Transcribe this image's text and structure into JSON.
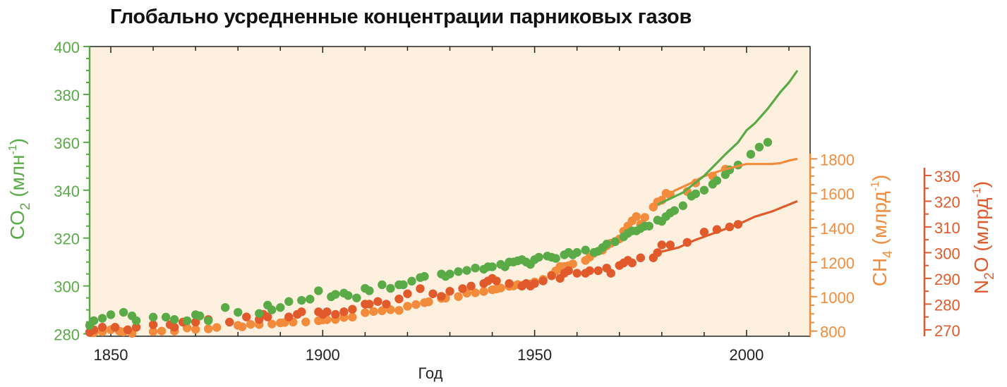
{
  "title": "Глобально усредненные концентрации парниковых газов",
  "colors": {
    "co2": "#5aaa48",
    "ch4": "#f28c3c",
    "n2o": "#e05a2c",
    "plot_bg": "#fdf0df"
  },
  "chart_data": {
    "type": "scatter",
    "title": "Глобально усредненные концентрации парниковых газов",
    "xlabel": "Год",
    "xlim": [
      1845,
      2015
    ],
    "x_ticks": [
      1850,
      1900,
      1950,
      2000
    ],
    "y_axes": [
      {
        "series": "CO2",
        "label_main": "CO",
        "label_sub": "2",
        "label_unit": " (млн",
        "label_sup": "-1",
        "label_close": ")",
        "lim": [
          279,
          400
        ],
        "ticks": [
          280,
          300,
          320,
          340,
          360,
          380,
          400
        ],
        "side": "left",
        "color": "#5aaa48"
      },
      {
        "series": "CH4",
        "label_main": "CH",
        "label_sub": "4",
        "label_unit": " (млрд",
        "label_sup": "-1",
        "label_close": ")",
        "lim": [
          770,
          1830
        ],
        "ticks": [
          800,
          1000,
          1200,
          1400,
          1600,
          1800
        ],
        "side": "right",
        "color": "#f28c3c"
      },
      {
        "series": "N2O",
        "label_main": "N",
        "label_sub": "2",
        "label_unit": "O (млрд",
        "label_sup": "-1",
        "label_close": ")",
        "lim": [
          267.5,
          333
        ],
        "ticks": [
          270,
          280,
          290,
          300,
          310,
          320,
          330
        ],
        "side": "right",
        "color": "#e05a2c"
      }
    ],
    "series": [
      {
        "id": "CO2",
        "color": "#5aaa48",
        "points": [
          [
            1845,
            283.5
          ],
          [
            1846,
            285.5
          ],
          [
            1848,
            286.5
          ],
          [
            1850,
            288
          ],
          [
            1853,
            289
          ],
          [
            1855,
            287.5
          ],
          [
            1856,
            285.5
          ],
          [
            1860,
            287
          ],
          [
            1863,
            287
          ],
          [
            1865,
            286
          ],
          [
            1868,
            285.5
          ],
          [
            1870,
            288
          ],
          [
            1871,
            287.5
          ],
          [
            1873,
            285.5
          ],
          [
            1877,
            291
          ],
          [
            1880,
            289
          ],
          [
            1885,
            288.5
          ],
          [
            1887,
            292
          ],
          [
            1888,
            290
          ],
          [
            1890,
            291
          ],
          [
            1892,
            293.5
          ],
          [
            1895,
            294
          ],
          [
            1897,
            294.5
          ],
          [
            1899,
            298
          ],
          [
            1902,
            295.5
          ],
          [
            1903,
            296.5
          ],
          [
            1905,
            297
          ],
          [
            1906,
            296
          ],
          [
            1908,
            295
          ],
          [
            1910,
            299
          ],
          [
            1911,
            298
          ],
          [
            1914,
            300.5
          ],
          [
            1916,
            299
          ],
          [
            1918,
            300.5
          ],
          [
            1919,
            300.5
          ],
          [
            1921,
            302
          ],
          [
            1923,
            303.5
          ],
          [
            1924,
            304
          ],
          [
            1928,
            305
          ],
          [
            1929,
            304
          ],
          [
            1930,
            305
          ],
          [
            1932,
            306
          ],
          [
            1934,
            306.5
          ],
          [
            1936,
            307.5
          ],
          [
            1938,
            307
          ],
          [
            1939,
            308
          ],
          [
            1940,
            308
          ],
          [
            1942,
            309
          ],
          [
            1943,
            308
          ],
          [
            1944,
            310
          ],
          [
            1945,
            310
          ],
          [
            1946,
            310.5
          ],
          [
            1947,
            311
          ],
          [
            1948,
            310
          ],
          [
            1949,
            309
          ],
          [
            1950,
            311
          ],
          [
            1951,
            312
          ],
          [
            1953,
            312.5
          ],
          [
            1954,
            312
          ],
          [
            1955,
            311.5
          ],
          [
            1957,
            313
          ],
          [
            1958,
            314
          ],
          [
            1959,
            313
          ],
          [
            1960,
            314
          ],
          [
            1962,
            315
          ],
          [
            1964,
            314
          ],
          [
            1965,
            314.5
          ],
          [
            1966,
            316
          ],
          [
            1967,
            317.5
          ],
          [
            1969,
            318.5
          ],
          [
            1971,
            320.5
          ],
          [
            1972,
            322
          ],
          [
            1973,
            323
          ],
          [
            1974,
            323
          ],
          [
            1975,
            324
          ],
          [
            1976,
            325
          ],
          [
            1977,
            325
          ],
          [
            1979,
            327.5
          ],
          [
            1980,
            327
          ],
          [
            1981,
            329
          ],
          [
            1982,
            330.5
          ],
          [
            1983,
            331.5
          ],
          [
            1985,
            333.5
          ],
          [
            1987,
            337.5
          ],
          [
            1988,
            338.5
          ],
          [
            1990,
            340
          ],
          [
            1992,
            342.5
          ],
          [
            1993,
            344
          ],
          [
            1995,
            346.5
          ],
          [
            1996,
            348.5
          ],
          [
            1998,
            350.5
          ],
          [
            2001,
            355
          ],
          [
            2003,
            358
          ],
          [
            2005,
            360
          ]
        ],
        "line": [
          [
            1979,
            334
          ],
          [
            1985,
            339
          ],
          [
            1990,
            346
          ],
          [
            1995,
            355
          ],
          [
            1998,
            360
          ],
          [
            2000,
            365
          ],
          [
            2002,
            368
          ],
          [
            2005,
            374
          ],
          [
            2008,
            381
          ],
          [
            2010,
            385
          ],
          [
            2012,
            390
          ]
        ]
      },
      {
        "id": "CH4",
        "color": "#f28c3c",
        "points": [
          [
            1845,
            793
          ],
          [
            1846,
            790
          ],
          [
            1848,
            796
          ],
          [
            1850,
            808
          ],
          [
            1852,
            800
          ],
          [
            1853,
            795
          ],
          [
            1855,
            787
          ],
          [
            1860,
            797
          ],
          [
            1862,
            800
          ],
          [
            1865,
            800
          ],
          [
            1868,
            818
          ],
          [
            1870,
            810
          ],
          [
            1873,
            813
          ],
          [
            1875,
            821
          ],
          [
            1880,
            833
          ],
          [
            1881,
            825
          ],
          [
            1883,
            839
          ],
          [
            1885,
            838
          ],
          [
            1888,
            841
          ],
          [
            1890,
            848
          ],
          [
            1891,
            850
          ],
          [
            1893,
            852
          ],
          [
            1896,
            853
          ],
          [
            1899,
            860
          ],
          [
            1900,
            865
          ],
          [
            1901,
            866
          ],
          [
            1903,
            867
          ],
          [
            1905,
            879
          ],
          [
            1907,
            881
          ],
          [
            1910,
            907
          ],
          [
            1912,
            914
          ],
          [
            1914,
            918
          ],
          [
            1916,
            924
          ],
          [
            1918,
            920
          ],
          [
            1920,
            944
          ],
          [
            1922,
            954
          ],
          [
            1924,
            965
          ],
          [
            1925,
            970
          ],
          [
            1928,
            990
          ],
          [
            1929,
            991
          ],
          [
            1932,
            1000
          ],
          [
            1934,
            1020
          ],
          [
            1936,
            1022
          ],
          [
            1938,
            1030
          ],
          [
            1940,
            1040
          ],
          [
            1941,
            1044
          ],
          [
            1942,
            1050
          ],
          [
            1944,
            1060
          ],
          [
            1945,
            1062
          ],
          [
            1946,
            1070
          ],
          [
            1947,
            1066
          ],
          [
            1949,
            1073
          ],
          [
            1950,
            1085
          ],
          [
            1952,
            1100
          ],
          [
            1954,
            1126
          ],
          [
            1955,
            1150
          ],
          [
            1956,
            1175
          ],
          [
            1957,
            1175
          ],
          [
            1958,
            1180
          ],
          [
            1959,
            1190
          ],
          [
            1962,
            1210
          ],
          [
            1963,
            1230
          ],
          [
            1964,
            1252
          ],
          [
            1966,
            1270
          ],
          [
            1967,
            1295
          ],
          [
            1968,
            1310
          ],
          [
            1969,
            1320
          ],
          [
            1970,
            1335
          ],
          [
            1971,
            1380
          ],
          [
            1972,
            1410
          ],
          [
            1973,
            1440
          ],
          [
            1974,
            1465
          ],
          [
            1975,
            1420
          ],
          [
            1976,
            1460
          ],
          [
            1978,
            1520
          ],
          [
            1979,
            1550
          ],
          [
            1980,
            1560
          ],
          [
            1981,
            1600
          ],
          [
            1982,
            1590
          ],
          [
            1986,
            1610
          ],
          [
            1988,
            1660
          ],
          [
            1992,
            1700
          ],
          [
            1995,
            1740
          ]
        ],
        "line": [
          [
            1979,
            1550
          ],
          [
            1983,
            1615
          ],
          [
            1987,
            1660
          ],
          [
            1990,
            1700
          ],
          [
            1995,
            1740
          ],
          [
            2000,
            1770
          ],
          [
            2003,
            1770
          ],
          [
            2006,
            1770
          ],
          [
            2008,
            1775
          ],
          [
            2010,
            1790
          ],
          [
            2012,
            1800
          ]
        ]
      },
      {
        "id": "N2O",
        "color": "#e05a2c",
        "points": [
          [
            1845,
            269
          ],
          [
            1846,
            270
          ],
          [
            1848,
            271
          ],
          [
            1851,
            271
          ],
          [
            1854,
            270
          ],
          [
            1856,
            271
          ],
          [
            1860,
            272
          ],
          [
            1864,
            272
          ],
          [
            1865,
            271
          ],
          [
            1867,
            273
          ],
          [
            1870,
            273
          ],
          [
            1873,
            274
          ],
          [
            1878,
            273
          ],
          [
            1882,
            275
          ],
          [
            1885,
            274
          ],
          [
            1886,
            276
          ],
          [
            1887,
            275
          ],
          [
            1892,
            275
          ],
          [
            1894,
            276
          ],
          [
            1895,
            277
          ],
          [
            1899,
            277
          ],
          [
            1900,
            276
          ],
          [
            1901,
            277
          ],
          [
            1903,
            276
          ],
          [
            1905,
            277
          ],
          [
            1907,
            278
          ],
          [
            1910,
            280
          ],
          [
            1911,
            280
          ],
          [
            1913,
            281
          ],
          [
            1915,
            280
          ],
          [
            1918,
            282
          ],
          [
            1920,
            284
          ],
          [
            1923,
            286
          ],
          [
            1926,
            284
          ],
          [
            1928,
            283
          ],
          [
            1930,
            285
          ],
          [
            1933,
            286
          ],
          [
            1935,
            287
          ],
          [
            1938,
            288
          ],
          [
            1939,
            289
          ],
          [
            1940,
            290
          ],
          [
            1941,
            289
          ],
          [
            1944,
            288
          ],
          [
            1947,
            287
          ],
          [
            1948,
            288
          ],
          [
            1949,
            287
          ],
          [
            1950,
            288
          ],
          [
            1952,
            289
          ],
          [
            1954,
            291
          ],
          [
            1956,
            290
          ],
          [
            1957,
            292
          ],
          [
            1958,
            293
          ],
          [
            1960,
            292
          ],
          [
            1962,
            292
          ],
          [
            1963,
            293
          ],
          [
            1965,
            293
          ],
          [
            1967,
            294
          ],
          [
            1968,
            292
          ],
          [
            1970,
            295
          ],
          [
            1971,
            296
          ],
          [
            1972,
            297
          ],
          [
            1973,
            296
          ],
          [
            1975,
            298
          ],
          [
            1978,
            298
          ],
          [
            1979,
            300
          ],
          [
            1980,
            303
          ],
          [
            1982,
            303
          ],
          [
            1986,
            304
          ],
          [
            1990,
            308
          ],
          [
            1993,
            309
          ],
          [
            1996,
            310
          ],
          [
            1998,
            311
          ]
        ],
        "line": [
          [
            1979,
            300
          ],
          [
            1984,
            302
          ],
          [
            1988,
            305
          ],
          [
            1993,
            308
          ],
          [
            1998,
            311
          ],
          [
            2002,
            314
          ],
          [
            2006,
            316
          ],
          [
            2009,
            318
          ],
          [
            2012,
            320
          ]
        ]
      }
    ]
  }
}
